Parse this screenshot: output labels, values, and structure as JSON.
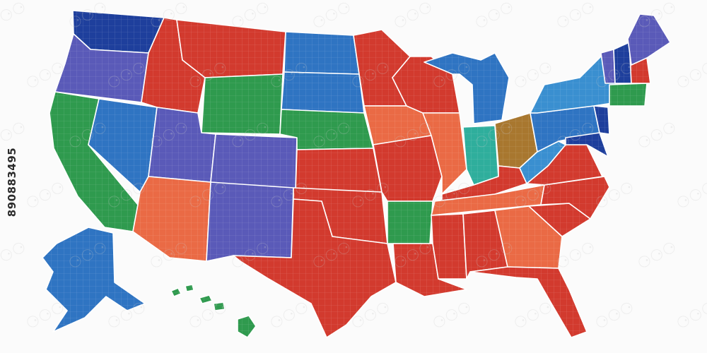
{
  "stock_id": "890883495",
  "colors": {
    "red": "#d23a2e",
    "orange": "#ea6a45",
    "green": "#2f9a4e",
    "blue": "#2f74c2",
    "light_blue": "#3a8fd0",
    "purple": "#5a5ab8",
    "navy": "#1e3f9c",
    "teal": "#2fae9c",
    "olive": "#a8772f",
    "stroke": "#ffffff"
  },
  "watermark_glyph": "⚆",
  "regions": [
    {
      "name": "washington",
      "color": "navy"
    },
    {
      "name": "oregon",
      "color": "purple"
    },
    {
      "name": "california",
      "color": "green"
    },
    {
      "name": "nevada",
      "color": "blue"
    },
    {
      "name": "idaho",
      "color": "red"
    },
    {
      "name": "montana",
      "color": "red"
    },
    {
      "name": "wyoming",
      "color": "green"
    },
    {
      "name": "utah",
      "color": "purple"
    },
    {
      "name": "arizona",
      "color": "orange"
    },
    {
      "name": "colorado",
      "color": "purple"
    },
    {
      "name": "new-mexico",
      "color": "purple"
    },
    {
      "name": "north-dakota",
      "color": "blue"
    },
    {
      "name": "south-dakota",
      "color": "blue"
    },
    {
      "name": "nebraska",
      "color": "green"
    },
    {
      "name": "kansas",
      "color": "red"
    },
    {
      "name": "oklahoma",
      "color": "red"
    },
    {
      "name": "texas",
      "color": "red"
    },
    {
      "name": "minnesota",
      "color": "red"
    },
    {
      "name": "iowa",
      "color": "orange"
    },
    {
      "name": "missouri",
      "color": "red"
    },
    {
      "name": "arkansas",
      "color": "green"
    },
    {
      "name": "louisiana",
      "color": "red"
    },
    {
      "name": "wisconsin",
      "color": "red"
    },
    {
      "name": "illinois",
      "color": "orange"
    },
    {
      "name": "michigan",
      "color": "blue"
    },
    {
      "name": "indiana",
      "color": "teal"
    },
    {
      "name": "ohio",
      "color": "olive"
    },
    {
      "name": "kentucky",
      "color": "red"
    },
    {
      "name": "tennessee",
      "color": "orange"
    },
    {
      "name": "mississippi",
      "color": "red"
    },
    {
      "name": "alabama",
      "color": "red"
    },
    {
      "name": "georgia",
      "color": "orange"
    },
    {
      "name": "florida",
      "color": "red"
    },
    {
      "name": "south-carolina",
      "color": "red"
    },
    {
      "name": "north-carolina",
      "color": "red"
    },
    {
      "name": "virginia",
      "color": "red"
    },
    {
      "name": "west-virginia",
      "color": "light_blue"
    },
    {
      "name": "pennsylvania",
      "color": "blue"
    },
    {
      "name": "new-york",
      "color": "light_blue"
    },
    {
      "name": "maryland-delaware",
      "color": "navy"
    },
    {
      "name": "new-jersey",
      "color": "navy"
    },
    {
      "name": "connecticut-ri",
      "color": "green"
    },
    {
      "name": "massachusetts",
      "color": "red"
    },
    {
      "name": "vermont",
      "color": "purple"
    },
    {
      "name": "new-hampshire",
      "color": "navy"
    },
    {
      "name": "maine",
      "color": "purple"
    },
    {
      "name": "alaska",
      "color": "blue"
    },
    {
      "name": "hawaii",
      "color": "green"
    }
  ]
}
